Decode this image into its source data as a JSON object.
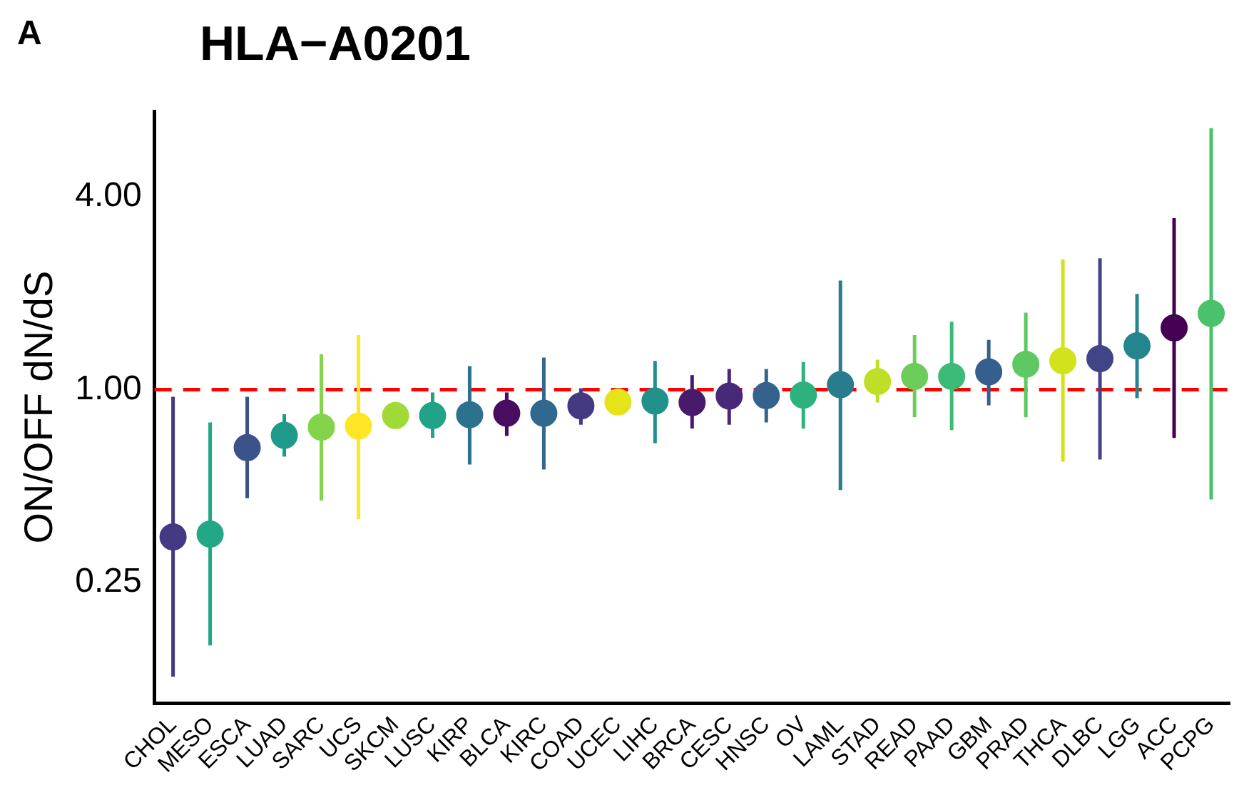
{
  "chart_data": {
    "type": "scatter",
    "title": "HLA−A0201",
    "ylabel": "ON/OFF dN/dS",
    "annotations": [
      "A"
    ],
    "categories": [
      "CHOL",
      "MESO",
      "ESCA",
      "LUAD",
      "SARC",
      "UCS",
      "SKCM",
      "LUSC",
      "KIRP",
      "BLCA",
      "KIRC",
      "COAD",
      "UCEC",
      "LIHC",
      "BRCA",
      "CESC",
      "HNSC",
      "OV",
      "LAML",
      "STAD",
      "READ",
      "PAAD",
      "GBM",
      "PRAD",
      "THCA",
      "DLBC",
      "LGG",
      "ACC",
      "PCPG"
    ],
    "values": [
      0.347,
      0.354,
      0.659,
      0.72,
      0.764,
      0.77,
      0.83,
      0.83,
      0.835,
      0.844,
      0.844,
      0.89,
      0.915,
      0.921,
      0.912,
      0.955,
      0.958,
      0.962,
      1.036,
      1.06,
      1.1,
      1.1,
      1.136,
      1.2,
      1.23,
      1.25,
      1.37,
      1.56,
      1.73
    ],
    "errors": [
      [
        0.127,
        0.95
      ],
      [
        0.159,
        0.79
      ],
      [
        0.458,
        0.95
      ],
      [
        0.618,
        0.838
      ],
      [
        0.45,
        1.29
      ],
      [
        0.394,
        1.48
      ],
      null,
      [
        0.707,
        0.98
      ],
      [
        0.584,
        1.185
      ],
      [
        0.717,
        0.98
      ],
      [
        0.563,
        1.26
      ],
      [
        0.777,
        1.01
      ],
      null,
      [
        0.68,
        1.23
      ],
      [
        0.756,
        1.11
      ],
      [
        0.777,
        1.16
      ],
      [
        0.79,
        1.16
      ],
      [
        0.756,
        1.22
      ],
      [
        0.486,
        2.19
      ],
      [
        0.912,
        1.24
      ],
      [
        0.82,
        1.48
      ],
      [
        0.748,
        1.63
      ],
      [
        0.893,
        1.43
      ],
      [
        0.82,
        1.74
      ],
      [
        0.596,
        2.55
      ],
      [
        0.605,
        2.57
      ],
      [
        0.94,
        1.99
      ],
      [
        0.707,
        3.43
      ],
      [
        0.454,
        6.55
      ]
    ],
    "colors": [
      "#443983",
      "#22a884",
      "#3b528b",
      "#1f9a8a",
      "#84d44b",
      "#fde725",
      "#a0da39",
      "#20a386",
      "#2c728e",
      "#470d60",
      "#31688e",
      "#443983",
      "#e5e419",
      "#21918c",
      "#481a6c",
      "#482878",
      "#33638d",
      "#2db27d",
      "#287c8e",
      "#bddf26",
      "#6ccd5a",
      "#3bbb75",
      "#355f8d",
      "#5ec962",
      "#d2e21b",
      "#414487",
      "#25858e",
      "#440154",
      "#4ac16d"
    ],
    "log": "y",
    "ylim": [
      0.105,
      7.4
    ],
    "yticks": [
      {
        "value": 0.25,
        "label": "0.25"
      },
      {
        "value": 1,
        "label": "1.00"
      },
      {
        "value": 4,
        "label": "4.00"
      }
    ],
    "ref_lines": [
      {
        "axis": "y",
        "value": 1,
        "color": "#ff0000",
        "line_style": "dashed"
      }
    ],
    "grid": false,
    "legend": false,
    "marker": "circle"
  }
}
